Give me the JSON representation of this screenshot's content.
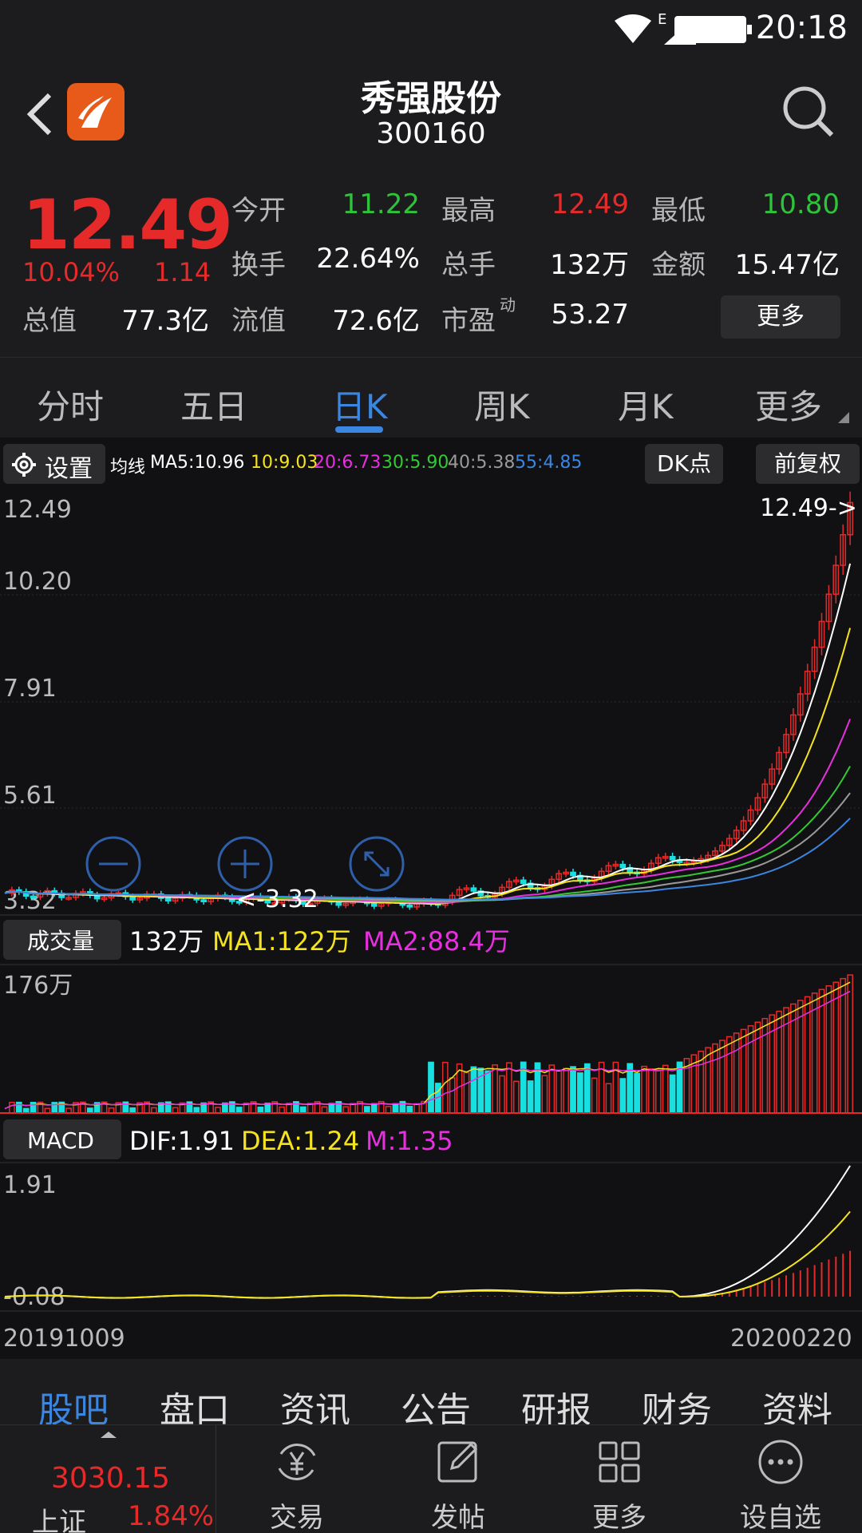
{
  "status": {
    "time": "20:18",
    "network": "E"
  },
  "header": {
    "title": "秀强股份",
    "code": "300160"
  },
  "quote": {
    "price": "12.49",
    "pct": "10.04%",
    "change": "1.14",
    "open_label": "今开",
    "open": "11.22",
    "high_label": "最高",
    "high": "12.49",
    "low_label": "最低",
    "low": "10.80",
    "turnover_label": "换手",
    "turnover": "22.64%",
    "volume_label": "总手",
    "volume": "132万",
    "amount_label": "金额",
    "amount": "15.47亿",
    "mcap_label": "总值",
    "mcap": "77.3亿",
    "float_label": "流值",
    "float": "72.6亿",
    "pe_label": "市盈",
    "pe_sup": "动",
    "pe": "53.27",
    "more": "更多"
  },
  "period_tabs": [
    "分时",
    "五日",
    "日K",
    "周K",
    "月K",
    "更多"
  ],
  "ma_row": {
    "settings": "设置",
    "label": "均线",
    "ma5": "MA5:10.96",
    "ma10": "10:9.03",
    "ma20": "20:6.73",
    "ma30": "30:5.90",
    "ma40": "40:5.38",
    "ma55": "55:4.85",
    "dk": "DK点",
    "fq": "前复权"
  },
  "kline": {
    "axis": [
      "12.49",
      "10.20",
      "7.91",
      "5.61",
      "3.32"
    ],
    "high_marker": "12.49->",
    "low_marker": "<-3.32"
  },
  "volume": {
    "label": "成交量",
    "value": "132万",
    "ma1": "MA1:122万",
    "ma2": "MA2:88.4万",
    "axis_top": "176万"
  },
  "macd": {
    "label": "MACD",
    "dif": "DIF:1.91",
    "dea": "DEA:1.24",
    "m": "M:1.35",
    "axis_top": "1.91",
    "axis_bottom": "-0.08"
  },
  "dates": {
    "start": "20191009",
    "end": "20200220"
  },
  "bottom_tabs": [
    "股吧",
    "盘口",
    "资讯",
    "公告",
    "研报",
    "财务",
    "资料"
  ],
  "index": {
    "value": "3030.15",
    "name": "上证",
    "pct": "1.84%"
  },
  "nav": [
    "交易",
    "发帖",
    "更多",
    "设自选"
  ],
  "colors": {
    "up": "#e62a2a",
    "down": "#2ec33a",
    "accent": "#3a86e0",
    "ma5": "#ffffff",
    "ma10": "#f5e31c",
    "ma20": "#e82fe0",
    "ma30": "#34c934",
    "ma40": "#9a9a9a",
    "ma55": "#3a86e0"
  }
}
